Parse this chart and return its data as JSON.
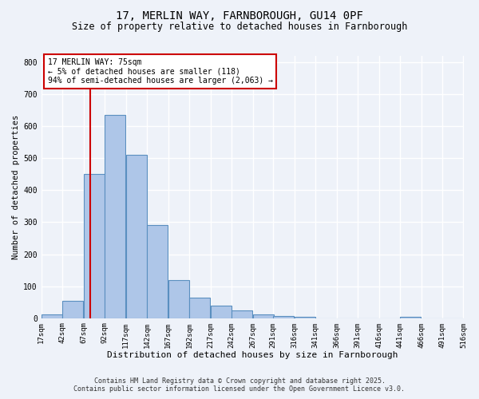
{
  "title_line1": "17, MERLIN WAY, FARNBOROUGH, GU14 0PF",
  "title_line2": "Size of property relative to detached houses in Farnborough",
  "xlabel": "Distribution of detached houses by size in Farnborough",
  "ylabel": "Number of detached properties",
  "footnote_line1": "Contains HM Land Registry data © Crown copyright and database right 2025.",
  "footnote_line2": "Contains public sector information licensed under the Open Government Licence v3.0.",
  "annotation_line1": "17 MERLIN WAY: 75sqm",
  "annotation_line2": "← 5% of detached houses are smaller (118)",
  "annotation_line3": "94% of semi-detached houses are larger (2,063) →",
  "property_size": 75,
  "bar_edges": [
    17,
    42,
    67,
    92,
    117,
    142,
    167,
    192,
    217,
    242,
    267,
    291,
    316,
    341,
    366,
    391,
    416,
    441,
    466,
    491,
    516
  ],
  "bar_values": [
    12,
    55,
    450,
    635,
    510,
    290,
    120,
    63,
    38,
    25,
    12,
    7,
    5,
    0,
    0,
    0,
    0,
    5,
    0,
    0
  ],
  "bar_color": "#aec6e8",
  "bar_edgecolor": "#5a8fc0",
  "bar_linewidth": 0.8,
  "vline_color": "#cc0000",
  "vline_x": 75,
  "annotation_box_edgecolor": "#cc0000",
  "annotation_box_facecolor": "white",
  "background_color": "#eef2f9",
  "ylim": [
    0,
    820
  ],
  "yticks": [
    0,
    100,
    200,
    300,
    400,
    500,
    600,
    700,
    800
  ],
  "grid_color": "white",
  "tick_labels": [
    "17sqm",
    "42sqm",
    "67sqm",
    "92sqm",
    "117sqm",
    "142sqm",
    "167sqm",
    "192sqm",
    "217sqm",
    "242sqm",
    "267sqm",
    "291sqm",
    "316sqm",
    "341sqm",
    "366sqm",
    "391sqm",
    "416sqm",
    "441sqm",
    "466sqm",
    "491sqm",
    "516sqm"
  ],
  "title_fontsize": 10,
  "subtitle_fontsize": 8.5,
  "xlabel_fontsize": 8,
  "ylabel_fontsize": 7.5,
  "annotation_fontsize": 7,
  "footnote_fontsize": 6,
  "tick_fontsize": 6.5
}
